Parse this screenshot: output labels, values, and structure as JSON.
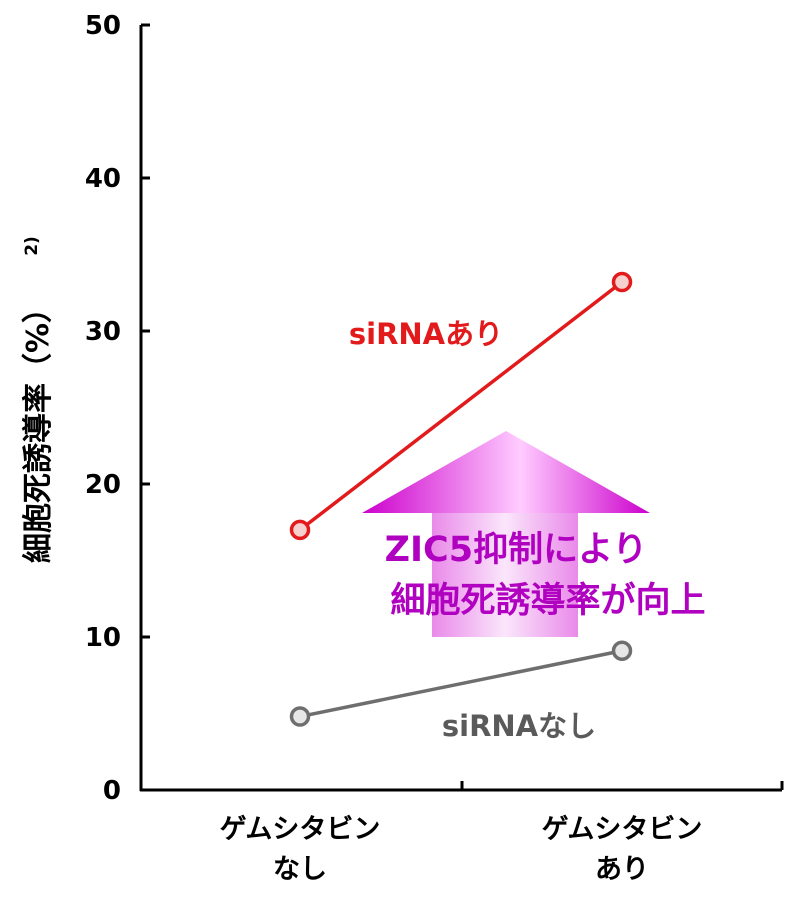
{
  "colors": {
    "axis": "#000000",
    "series_with": "#e31a1c",
    "series_without": "#6e6e6e",
    "arrow": "#cc00cc",
    "annotation": "#b000c0"
  },
  "chart_data": {
    "type": "line",
    "ylabel": "細胞死誘導率（%）",
    "ylabel_note": "2)",
    "ylim": [
      0,
      50
    ],
    "yticks": [
      0,
      10,
      20,
      30,
      40,
      50
    ],
    "categories": [
      [
        "ゲムシタビン",
        "なし"
      ],
      [
        "ゲムシタビン",
        "あり"
      ]
    ],
    "series": [
      {
        "name": "siRNAあり",
        "values": [
          17,
          33.2
        ],
        "color": "#e31a1c"
      },
      {
        "name": "siRNAなし",
        "values": [
          4.8,
          9.1
        ],
        "color": "#6e6e6e"
      }
    ],
    "annotation": {
      "lines": [
        "ZIC5抑制により",
        "細胞死誘導率が向上"
      ],
      "arrow": "up"
    },
    "grid": false
  }
}
